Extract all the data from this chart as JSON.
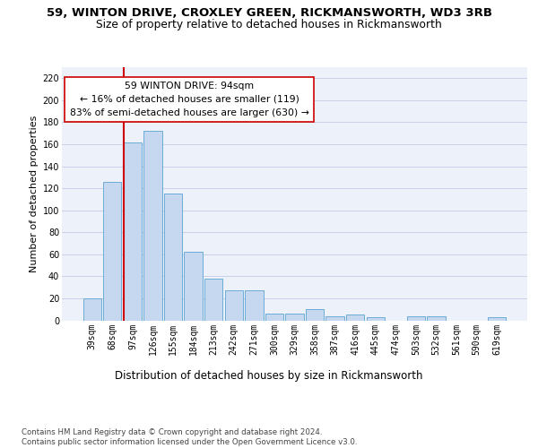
{
  "title": "59, WINTON DRIVE, CROXLEY GREEN, RICKMANSWORTH, WD3 3RB",
  "subtitle": "Size of property relative to detached houses in Rickmansworth",
  "xlabel": "Distribution of detached houses by size in Rickmansworth",
  "ylabel": "Number of detached properties",
  "categories": [
    "39sqm",
    "68sqm",
    "97sqm",
    "126sqm",
    "155sqm",
    "184sqm",
    "213sqm",
    "242sqm",
    "271sqm",
    "300sqm",
    "329sqm",
    "358sqm",
    "387sqm",
    "416sqm",
    "445sqm",
    "474sqm",
    "503sqm",
    "532sqm",
    "561sqm",
    "590sqm",
    "619sqm"
  ],
  "values": [
    20,
    126,
    162,
    172,
    115,
    62,
    38,
    27,
    27,
    6,
    6,
    10,
    4,
    5,
    3,
    0,
    4,
    4,
    0,
    0,
    3
  ],
  "bar_color": "#c5d8ef",
  "bar_edge_color": "#6aacd6",
  "vline_color": "#cc0000",
  "vline_pos": 1.575,
  "annotation_line1": "59 WINTON DRIVE: 94sqm",
  "annotation_line2": "← 16% of detached houses are smaller (119)",
  "annotation_line3": "83% of semi-detached houses are larger (630) →",
  "annotation_box_color": "#ffffff",
  "annotation_box_edge": "#cc0000",
  "ylim_max": 230,
  "yticks": [
    0,
    20,
    40,
    60,
    80,
    100,
    120,
    140,
    160,
    180,
    200,
    220
  ],
  "bg_color": "#edf1fa",
  "grid_color": "#c8cfe8",
  "footer": "Contains HM Land Registry data © Crown copyright and database right 2024.\nContains public sector information licensed under the Open Government Licence v3.0.",
  "title_fontsize": 9.5,
  "subtitle_fontsize": 8.8,
  "xlabel_fontsize": 8.5,
  "ylabel_fontsize": 8,
  "tick_fontsize": 7,
  "annotation_fontsize": 7.8,
  "footer_fontsize": 6.2
}
